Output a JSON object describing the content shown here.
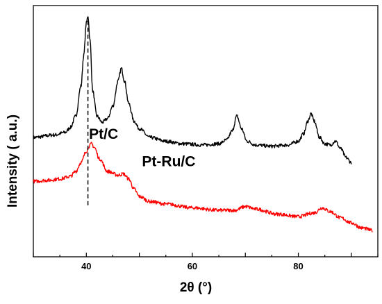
{
  "chart_data": {
    "type": "line",
    "title": "",
    "xlabel": "2θ (°)",
    "ylabel": "Intensity ( a.u.)",
    "xlim": [
      30,
      95
    ],
    "ylim": [
      0,
      100
    ],
    "x_ticks": [
      40,
      60,
      80
    ],
    "y_ticks": [],
    "grid": false,
    "legend": "none",
    "reference_line": {
      "x": 40.3,
      "style": "dashed",
      "color": "#000000"
    },
    "series": [
      {
        "name": "Pt/C",
        "color": "#000000",
        "label_at": [
          40.5,
          47
        ],
        "x": [
          30,
          34,
          36,
          37,
          38,
          39,
          39.5,
          40,
          40.3,
          40.7,
          41.2,
          42,
          43,
          44,
          45,
          46,
          46.6,
          47.2,
          48,
          49,
          50,
          52,
          55,
          58,
          62,
          65,
          66.5,
          67.5,
          68.4,
          69.3,
          70.3,
          72,
          75,
          78,
          80,
          81,
          81.8,
          82.4,
          83,
          84,
          85,
          86,
          87,
          88,
          89,
          90
        ],
        "y": [
          47.5,
          48.5,
          49.5,
          51.5,
          56,
          68,
          80,
          93,
          96,
          86,
          66,
          56,
          53.5,
          55,
          60,
          70,
          75,
          70,
          61,
          54,
          51,
          47.5,
          46,
          45,
          44.5,
          45,
          46.5,
          50,
          56,
          51,
          46,
          44.5,
          44,
          44.5,
          46,
          49,
          54,
          57,
          54,
          47.5,
          45,
          44.5,
          46,
          43,
          39.5,
          37.5
        ]
      },
      {
        "name": "Pt-Ru/C",
        "color": "#ff0000",
        "label_at": [
          50.5,
          36
        ],
        "x": [
          30,
          33,
          35,
          37,
          38,
          39,
          40,
          40.5,
          41,
          41.5,
          42.5,
          44,
          46,
          47,
          48,
          49,
          50,
          52,
          55,
          60,
          65,
          68,
          70,
          72,
          76,
          80,
          83,
          84.5,
          86,
          88,
          90,
          92,
          94
        ],
        "y": [
          30,
          30.5,
          31,
          32,
          34,
          37.5,
          42,
          44,
          45,
          43.5,
          39,
          34,
          32.5,
          33,
          31,
          27,
          24,
          22,
          21,
          19.5,
          18.5,
          18.5,
          20,
          19,
          17,
          16,
          17.5,
          19.5,
          18,
          15.5,
          13.5,
          11.5,
          10.5
        ]
      }
    ]
  }
}
